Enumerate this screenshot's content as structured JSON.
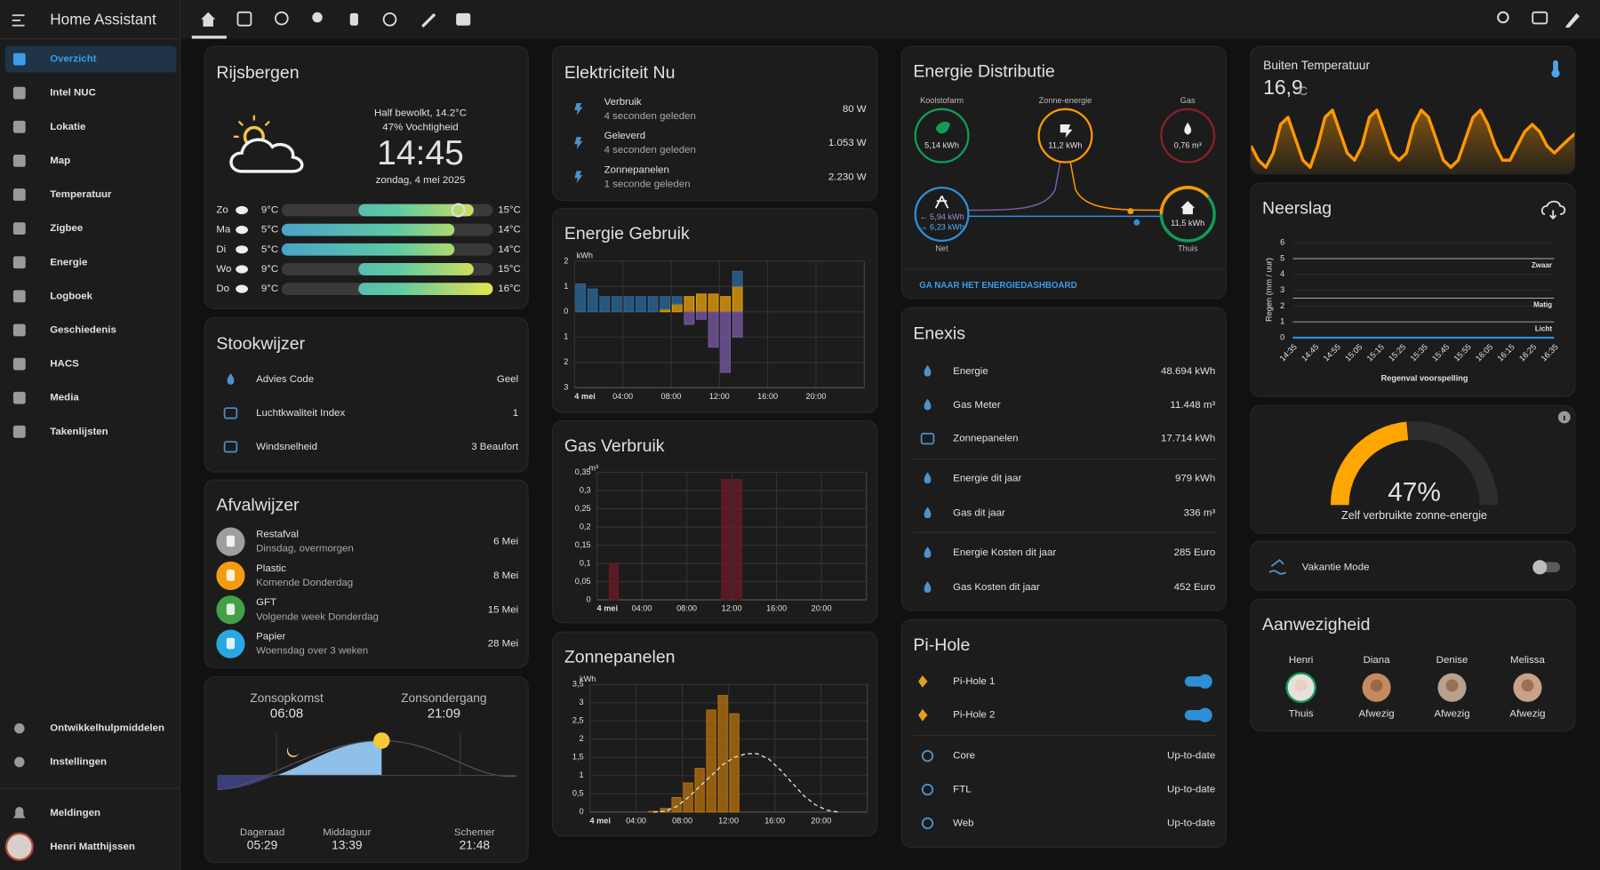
{
  "sidebar": {
    "title": "Home Assistant",
    "items": [
      "Overzicht",
      "Intel NUC",
      "Lokatie",
      "Map",
      "Temperatuur",
      "Zigbee",
      "Energie",
      "Logboek",
      "Geschiedenis",
      "HACS",
      "Media",
      "Takenlijsten"
    ],
    "footer_items": [
      "Ontwikkelhulpmiddelen",
      "Instellingen"
    ],
    "notifications": "Meldingen",
    "user": "Henri Matthijssen"
  },
  "weather": {
    "title": "Rijsbergen",
    "summary": "Half bewolkt, 14.2°C",
    "current_temp": 14.2,
    "humidity": "47% Vochtigheid",
    "time": "14:45",
    "date": "zondag, 4 mei 2025",
    "forecast": [
      {
        "day": "Zo",
        "low": 9,
        "high": 15,
        "low_label": "9°C",
        "high_label": "15°C"
      },
      {
        "day": "Ma",
        "low": 5,
        "high": 14,
        "low_label": "5°C",
        "high_label": "14°C"
      },
      {
        "day": "Di",
        "low": 5,
        "high": 14,
        "low_label": "5°C",
        "high_label": "14°C"
      },
      {
        "day": "Wo",
        "low": 9,
        "high": 15,
        "low_label": "9°C",
        "high_label": "15°C"
      },
      {
        "day": "Do",
        "low": 9,
        "high": 16,
        "low_label": "9°C",
        "high_label": "16°C"
      }
    ]
  },
  "stookwijzer": {
    "title": "Stookwijzer",
    "rows": [
      {
        "label": "Advies Code",
        "value": "Geel"
      },
      {
        "label": "Luchtkwaliteit Index",
        "value": "1"
      },
      {
        "label": "Windsnelheid",
        "value": "3 Beaufort"
      }
    ]
  },
  "afval": {
    "title": "Afvalwijzer",
    "rows": [
      {
        "name": "Restafval",
        "when": "Dinsdag, overmorgen",
        "date": "6 Mei",
        "color": "#9e9e9e"
      },
      {
        "name": "Plastic",
        "when": "Komende Donderdag",
        "date": "8 Mei",
        "color": "#f39c12"
      },
      {
        "name": "GFT",
        "when": "Volgende week Donderdag",
        "date": "15 Mei",
        "color": "#43a047"
      },
      {
        "name": "Papier",
        "when": "Woensdag over 3 weken",
        "date": "28 Mei",
        "color": "#29a8e0"
      }
    ]
  },
  "sun": {
    "sunrise_label": "Zonsopkomst",
    "sunrise": "06:08",
    "sunset_label": "Zonsondergang",
    "sunset": "21:09",
    "dawn_label": "Dageraad",
    "dawn": "05:29",
    "noon_label": "Middaguur",
    "noon": "13:39",
    "dusk_label": "Schemer",
    "dusk": "21:48"
  },
  "electricity": {
    "title": "Elektriciteit Nu",
    "rows": [
      {
        "name": "Verbruik",
        "updated": "4 seconden geleden",
        "value": "80 W"
      },
      {
        "name": "Geleverd",
        "updated": "4 seconden geleden",
        "value": "1.053 W"
      },
      {
        "name": "Zonnepanelen",
        "updated": "1 seconde geleden",
        "value": "2.230 W"
      }
    ]
  },
  "energy_usage": {
    "type": "bar",
    "title": "Energie Gebruik",
    "unit": "kWh",
    "x": [
      0,
      1,
      2,
      3,
      4,
      5,
      6,
      7,
      8,
      9,
      10,
      11,
      12,
      13
    ],
    "series": [
      {
        "color": "#f0a30a",
        "values": [
          0,
          0,
          0,
          0,
          0,
          0,
          0,
          0.1,
          0.3,
          0.6,
          0.7,
          0.7,
          0.6,
          1.0
        ]
      },
      {
        "color": "#2e6a9e",
        "values": [
          1.1,
          0.9,
          0.6,
          0.6,
          0.6,
          0.6,
          0.6,
          0.5,
          0.3,
          0,
          0,
          0,
          0,
          0.6
        ]
      },
      {
        "color": "#7b5aa6",
        "values": [
          0,
          0,
          0,
          0,
          0,
          0,
          0,
          0,
          0,
          -0.5,
          -0.3,
          -1.4,
          -2.4,
          -1.0
        ]
      }
    ],
    "xlim": [
      0,
      24
    ],
    "xticks": [
      {
        "value": 0,
        "label": "4 mei"
      },
      {
        "value": 4,
        "label": "04:00"
      },
      {
        "value": 8,
        "label": "08:00"
      },
      {
        "value": 12,
        "label": "12:00"
      },
      {
        "value": 16,
        "label": "16:00"
      },
      {
        "value": 20,
        "label": "20:00"
      }
    ],
    "ylim": [
      -3,
      2
    ],
    "yticks": [
      {
        "value": -3,
        "label": "3"
      },
      {
        "value": -2,
        "label": "2"
      },
      {
        "value": -1,
        "label": "1"
      },
      0,
      1,
      2
    ],
    "grid": true
  },
  "gas_usage": {
    "type": "bar",
    "title": "Gas Verbruik",
    "unit": "m³",
    "x": [
      1,
      11,
      12
    ],
    "series": [
      {
        "color": "#6e1a26",
        "values": [
          0.1,
          0.33,
          0.33
        ]
      }
    ],
    "xlim": [
      0,
      24
    ],
    "xticks": [
      {
        "value": 0,
        "label": "4 mei"
      },
      {
        "value": 4,
        "label": "04:00"
      },
      {
        "value": 8,
        "label": "08:00"
      },
      {
        "value": 12,
        "label": "12:00"
      },
      {
        "value": 16,
        "label": "16:00"
      },
      {
        "value": 20,
        "label": "20:00"
      }
    ],
    "ylim": [
      0,
      0.35
    ],
    "yticks": [
      0,
      {
        "value": 0.05,
        "label": "0,05"
      },
      {
        "value": 0.1,
        "label": "0,1"
      },
      {
        "value": 0.15,
        "label": "0,15"
      },
      {
        "value": 0.2,
        "label": "0,2"
      },
      {
        "value": 0.25,
        "label": "0,25"
      },
      {
        "value": 0.3,
        "label": "0,3"
      },
      {
        "value": 0.35,
        "label": "0,35"
      }
    ],
    "grid": true
  },
  "solar": {
    "type": "bar",
    "title": "Zonnepanelen",
    "unit": "kWh",
    "x": [
      5,
      6,
      7,
      8,
      9,
      10,
      11,
      12
    ],
    "series": [
      {
        "color": "#b8740e",
        "values": [
          0.02,
          0.1,
          0.4,
          0.8,
          1.2,
          2.8,
          3.2,
          2.7
        ]
      }
    ],
    "forecast": {
      "color": "#dddddd",
      "dashed": true,
      "x": [
        5,
        6,
        7,
        8,
        9,
        10,
        11,
        12,
        13,
        14,
        15,
        16,
        17,
        18,
        19,
        20,
        21
      ],
      "values": [
        0,
        0.02,
        0.15,
        0.4,
        0.7,
        1.0,
        1.3,
        1.5,
        1.6,
        1.6,
        1.45,
        1.15,
        0.8,
        0.45,
        0.2,
        0.05,
        0
      ]
    },
    "xlim": [
      0,
      24
    ],
    "xticks": [
      {
        "value": 0,
        "label": "4 mei"
      },
      {
        "value": 4,
        "label": "04:00"
      },
      {
        "value": 8,
        "label": "08:00"
      },
      {
        "value": 12,
        "label": "12:00"
      },
      {
        "value": 16,
        "label": "16:00"
      },
      {
        "value": 20,
        "label": "20:00"
      }
    ],
    "ylim": [
      0,
      3.5
    ],
    "yticks": [
      0,
      {
        "value": 0.5,
        "label": "0,5"
      },
      1,
      {
        "value": 1.5,
        "label": "1,5"
      },
      2,
      {
        "value": 2.5,
        "label": "2,5"
      },
      3,
      {
        "value": 3.5,
        "label": "3,5"
      }
    ],
    "grid": true
  },
  "distribution": {
    "title": "Energie Distributie",
    "low_carbon": {
      "label": "Koolstofarm",
      "value": "5,14 kWh"
    },
    "solar": {
      "label": "Zonne-energie",
      "value": "11,2 kWh"
    },
    "gas": {
      "label": "Gas",
      "value": "0,76 m³"
    },
    "grid": {
      "label": "Net",
      "in": "← 5,94 kWh",
      "out": "→ 6,23 kWh"
    },
    "home": {
      "label": "Thuis",
      "value": "11,5 kWh"
    },
    "link": "GA NAAR HET ENERGIEDASHBOARD"
  },
  "enexis": {
    "title": "Enexis",
    "rows": [
      {
        "label": "Energie",
        "value": "48.694 kWh"
      },
      {
        "label": "Gas Meter",
        "value": "11.448 m³"
      },
      {
        "label": "Zonnepanelen",
        "value": "17.714 kWh"
      },
      {
        "label": "Energie dit jaar",
        "value": "979 kWh"
      },
      {
        "label": "Gas dit jaar",
        "value": "336 m³"
      },
      {
        "label": "Energie Kosten dit jaar",
        "value": "285 Euro"
      },
      {
        "label": "Gas Kosten dit jaar",
        "value": "452 Euro"
      }
    ]
  },
  "pihole": {
    "title": "Pi-Hole",
    "switches": [
      {
        "name": "Pi-Hole 1",
        "on": true
      },
      {
        "name": "Pi-Hole 2",
        "on": true
      }
    ],
    "updates": [
      {
        "name": "Core",
        "state": "Up-to-date"
      },
      {
        "name": "FTL",
        "state": "Up-to-date"
      },
      {
        "name": "Web",
        "state": "Up-to-date"
      }
    ]
  },
  "outside": {
    "title": "Buiten Temperatuur",
    "value": "16,9",
    "unit": "°C",
    "history": [
      15,
      13,
      12,
      14,
      18,
      19,
      16,
      13,
      12,
      15,
      19,
      20,
      17,
      14,
      13,
      15,
      19,
      20,
      17,
      14,
      13,
      14,
      18,
      20,
      19,
      16,
      13,
      12,
      13,
      16,
      19,
      20,
      18,
      15,
      13,
      13,
      15,
      17,
      18,
      17,
      15,
      14,
      15,
      16,
      16.9
    ]
  },
  "precipitation": {
    "type": "line",
    "title": "Neerslag",
    "ylabel": "Regen (mm / uur)",
    "xlabel": "Regenval voorspelling",
    "categories": [
      "14:35",
      "14:45",
      "14:55",
      "15:05",
      "15:15",
      "15:25",
      "15:35",
      "15:45",
      "15:55",
      "16:05",
      "16:15",
      "16:25",
      "16:35"
    ],
    "values": [
      0,
      0,
      0,
      0,
      0,
      0,
      0,
      0,
      0,
      0,
      0,
      0,
      0
    ],
    "color": "#2e8fd8",
    "ylim": [
      0,
      6
    ],
    "yticks": [
      0,
      1,
      2,
      3,
      4,
      5,
      6
    ],
    "thresholds": [
      {
        "label": "Zwaar",
        "value": 5
      },
      {
        "label": "Matig",
        "value": 2.5
      },
      {
        "label": "Licht",
        "value": 1
      }
    ]
  },
  "gauge": {
    "value": 47,
    "value_label": "47%",
    "label": "Zelf verbruikte zonne-energie",
    "lim": [
      0,
      100
    ],
    "color": "#ffa600"
  },
  "vacation": {
    "label": "Vakantie Mode",
    "on": false
  },
  "presence": {
    "title": "Aanwezigheid",
    "people": [
      {
        "name": "Henri",
        "state": "Thuis"
      },
      {
        "name": "Diana",
        "state": "Afwezig"
      },
      {
        "name": "Denise",
        "state": "Afwezig"
      },
      {
        "name": "Melissa",
        "state": "Afwezig"
      }
    ]
  }
}
